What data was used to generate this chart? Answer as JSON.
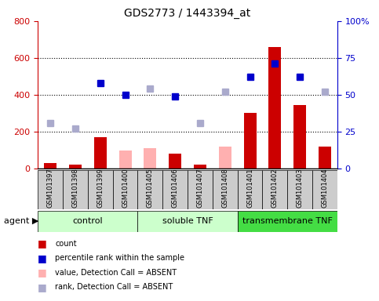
{
  "title": "GDS2773 / 1443394_at",
  "samples": [
    "GSM101397",
    "GSM101398",
    "GSM101399",
    "GSM101400",
    "GSM101405",
    "GSM101406",
    "GSM101407",
    "GSM101408",
    "GSM101401",
    "GSM101402",
    "GSM101403",
    "GSM101404"
  ],
  "groups": [
    {
      "label": "control",
      "start": 0,
      "end": 4
    },
    {
      "label": "soluble TNF",
      "start": 4,
      "end": 8
    },
    {
      "label": "transmembrane TNF",
      "start": 8,
      "end": 12
    }
  ],
  "group_colors": [
    "#ccffcc",
    "#ccffcc",
    "#44dd44"
  ],
  "red_bars": [
    30,
    20,
    170,
    null,
    null,
    80,
    20,
    null,
    300,
    660,
    345,
    120
  ],
  "pink_bars": [
    30,
    20,
    null,
    100,
    110,
    null,
    20,
    120,
    null,
    null,
    null,
    null
  ],
  "blue_squares_pct": [
    null,
    null,
    58,
    50,
    null,
    49,
    null,
    null,
    62,
    71,
    62,
    null
  ],
  "lavender_squares_pct": [
    31,
    27,
    null,
    null,
    54,
    null,
    31,
    52,
    null,
    null,
    null,
    52
  ],
  "ylim_left": [
    0,
    800
  ],
  "ylim_right": [
    0,
    100
  ],
  "yticks_left": [
    0,
    200,
    400,
    600,
    800
  ],
  "yticks_right": [
    0,
    25,
    50,
    75,
    100
  ],
  "ytick_labels_right": [
    "0",
    "25",
    "50",
    "75",
    "100%"
  ],
  "hgrid_vals": [
    200,
    400,
    600
  ],
  "left_axis_color": "#cc0000",
  "right_axis_color": "#0000cc",
  "bar_width": 0.5,
  "legend_colors": [
    "#cc0000",
    "#0000cc",
    "#ffb0b0",
    "#aaaacc"
  ],
  "legend_labels": [
    "count",
    "percentile rank within the sample",
    "value, Detection Call = ABSENT",
    "rank, Detection Call = ABSENT"
  ]
}
